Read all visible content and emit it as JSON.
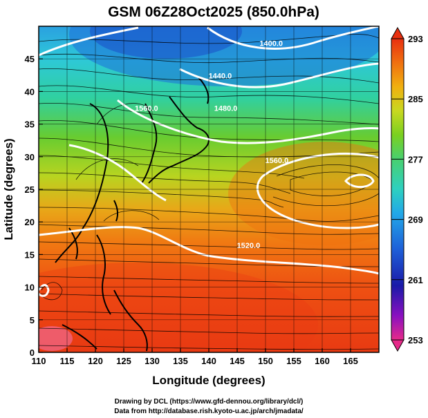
{
  "title": "GSM 06Z28Oct2025 (850.0hPa)",
  "map": {
    "lon_range": [
      110,
      170
    ],
    "lat_range": [
      0,
      50
    ],
    "xlabel": "Longitude (degrees)",
    "ylabel": "Latitude  (degrees)",
    "x_ticks": [
      "110",
      "115",
      "120",
      "125",
      "130",
      "135",
      "140",
      "145",
      "150",
      "155",
      "160",
      "165"
    ],
    "y_ticks": [
      "0",
      "5",
      "10",
      "15",
      "20",
      "25",
      "30",
      "35",
      "40",
      "45"
    ],
    "grid": true,
    "contour_labels": [
      {
        "text": "1400.0",
        "lon": 151,
        "lat": 47
      },
      {
        "text": "1440.0",
        "lon": 142,
        "lat": 42
      },
      {
        "text": "1480.0",
        "lon": 143,
        "lat": 37
      },
      {
        "text": "1560.0",
        "lon": 129,
        "lat": 37
      },
      {
        "text": "1560.0",
        "lon": 152,
        "lat": 29
      },
      {
        "text": "1520.0",
        "lon": 147,
        "lat": 16
      }
    ]
  },
  "colorbar": {
    "ticks": [
      "293",
      "285",
      "277",
      "269",
      "261",
      "253"
    ],
    "min": 253,
    "max": 293,
    "colors": [
      "#e62a8a",
      "#6a00b8",
      "#1a1aa8",
      "#1e5fd8",
      "#22a8e8",
      "#2ed0c0",
      "#48d070",
      "#7ad020",
      "#c8d820",
      "#f0b010",
      "#f07010",
      "#e83010"
    ]
  },
  "credits": {
    "line1": "Drawing by DCL (https://www.gfd-dennou.org/library/dcl/)",
    "line2": "Data from http://database.rish.kyoto-u.ac.jp/arch/jmadata/"
  }
}
